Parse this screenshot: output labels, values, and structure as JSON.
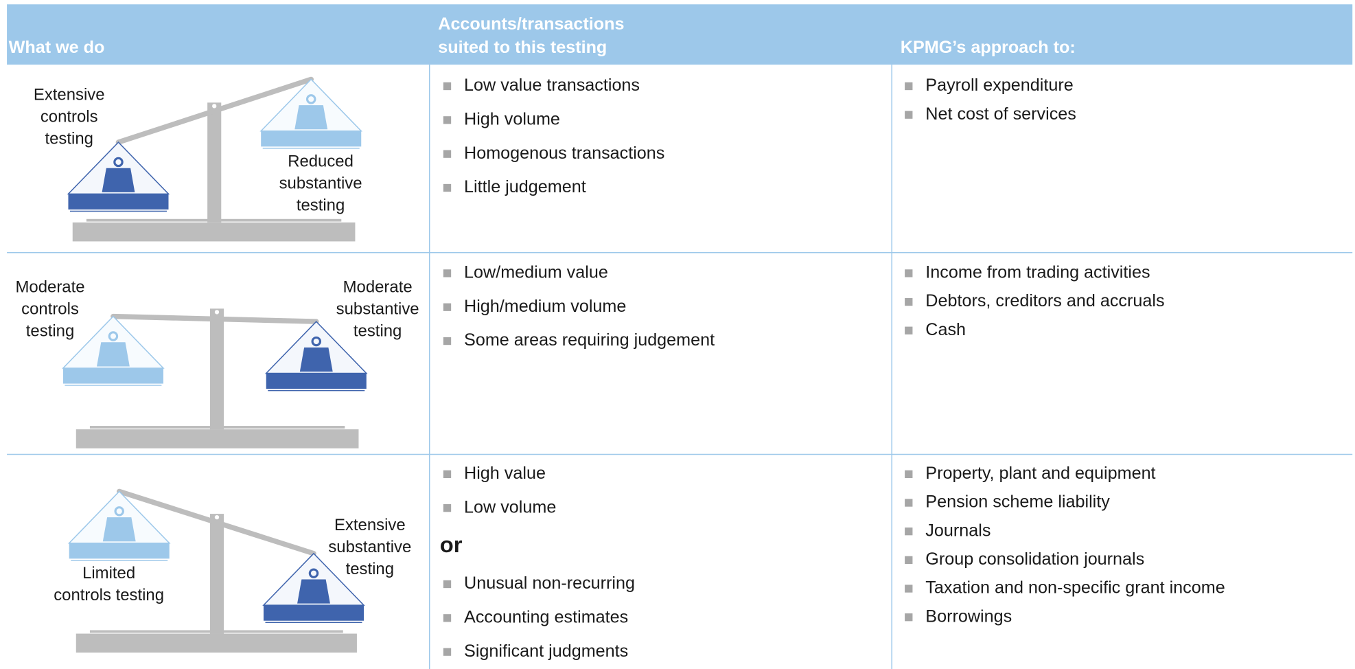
{
  "header": {
    "columns": [
      [
        "What we do"
      ],
      [
        "Accounts/transactions",
        "suited to this testing"
      ],
      [
        "KPMG’s approach to:"
      ]
    ]
  },
  "rows": [
    {
      "left_label": [
        "Extensive",
        "controls",
        "testing"
      ],
      "right_label": [
        "Reduced",
        "substantive",
        "testing"
      ],
      "accounts": [
        "Low value transactions",
        "High volume",
        "Homogenous transactions",
        "Little judgement"
      ],
      "approach": [
        "Payroll expenditure",
        "Net cost of services"
      ]
    },
    {
      "left_label": [
        "Moderate",
        "controls",
        "testing"
      ],
      "right_label": [
        "Moderate",
        "substantive",
        "testing"
      ],
      "accounts": [
        "Low/medium value",
        "High/medium volume",
        "Some areas requiring judgement"
      ],
      "approach": [
        "Income from trading activities",
        "Debtors, creditors and accruals",
        "Cash"
      ]
    },
    {
      "left_label": [
        "Limited",
        "controls testing"
      ],
      "right_label": [
        "Extensive",
        "substantive",
        "testing"
      ],
      "accounts": [
        "High value",
        "Low volume"
      ],
      "separator": "or",
      "accounts_continued": [
        "Unusual non-recurring",
        "Accounting estimates",
        "Significant judgments"
      ],
      "approach": [
        "Property, plant and equipment",
        "Pension scheme liability",
        "Journals",
        "Group consolidation journals",
        "Taxation and non-specific grant income",
        "Borrowings"
      ]
    }
  ]
}
